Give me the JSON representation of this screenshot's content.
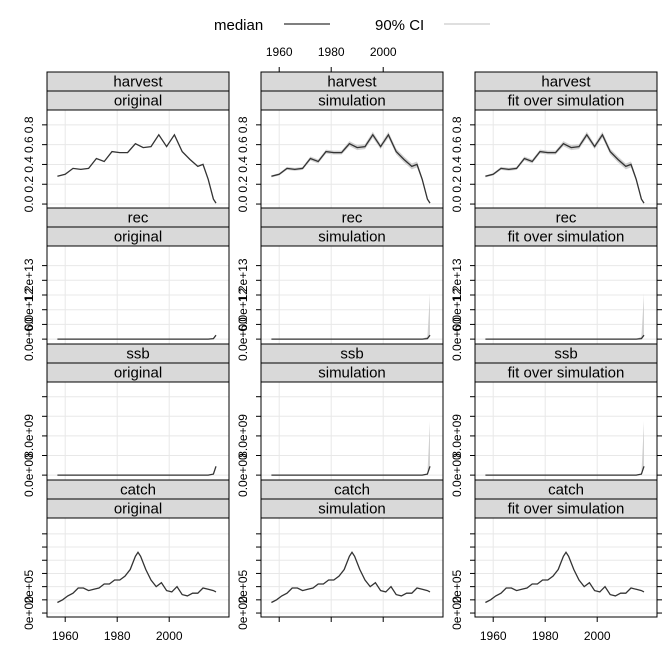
{
  "legend": {
    "items": [
      {
        "label": "median",
        "color": "#333333"
      },
      {
        "label": "90% CI",
        "color": "#cccccc"
      }
    ]
  },
  "chart_data": {
    "type": "line",
    "layout": "lattice 3 columns x 4 rows",
    "columns": [
      "original",
      "simulation",
      "fit over simulation"
    ],
    "x_ticks": [
      1960,
      1980,
      2000
    ],
    "xlim": [
      1953,
      2023
    ],
    "panels": [
      {
        "variable": "harvest",
        "ylim": [
          -0.05,
          0.95
        ],
        "y_ticks": [
          0.0,
          0.2,
          0.4,
          0.6,
          0.8
        ],
        "y_tick_labels": [
          "0.0",
          "0.2",
          "0.4",
          "0.6",
          "0.8"
        ],
        "x": [
          1957,
          1960,
          1963,
          1966,
          1969,
          1972,
          1975,
          1978,
          1981,
          1984,
          1987,
          1990,
          1993,
          1996,
          1999,
          2002,
          2005,
          2008,
          2011,
          2013,
          2015,
          2017,
          2018
        ],
        "median": [
          0.28,
          0.3,
          0.36,
          0.35,
          0.36,
          0.46,
          0.43,
          0.53,
          0.52,
          0.52,
          0.61,
          0.57,
          0.58,
          0.7,
          0.58,
          0.7,
          0.53,
          0.45,
          0.38,
          0.4,
          0.25,
          0.05,
          0.01
        ],
        "ci_halfwidth": [
          0.01,
          0.012,
          0.015,
          0.015,
          0.015,
          0.02,
          0.02,
          0.02,
          0.02,
          0.02,
          0.025,
          0.025,
          0.025,
          0.03,
          0.025,
          0.03,
          0.03,
          0.03,
          0.03,
          0.03,
          0.02,
          0.01,
          0.005
        ]
      },
      {
        "variable": "rec",
        "ylim": [
          -1200000000000.0,
          19000000000000.0
        ],
        "y_ticks": [
          0,
          3000000000000.0,
          6000000000000.0,
          9000000000000.0,
          12000000000000.0,
          15000000000000.0
        ],
        "y_tick_labels": [
          "0.0e+00",
          "",
          "6.0e+12",
          "",
          "1.2e+13",
          ""
        ],
        "x": [
          1957,
          1970,
          1990,
          2010,
          2015,
          2017,
          2018
        ],
        "median": [
          10000000000.0,
          10000000000.0,
          10000000000.0,
          10000000000.0,
          10000000000.0,
          100000000000.0,
          800000000000.0
        ],
        "ci_upper": [
          10000000000.0,
          10000000000.0,
          10000000000.0,
          10000000000.0,
          20000000000.0,
          500000000000.0,
          9300000000000.0
        ]
      },
      {
        "variable": "ssb",
        "ylim": [
          -1200000000.0,
          19000000000.0
        ],
        "y_ticks": [
          0,
          4000000000.0,
          8000000000.0,
          12000000000.0,
          16000000000.0
        ],
        "y_tick_labels": [
          "0.0e+00",
          "",
          "8.0e+09",
          "",
          ""
        ],
        "x": [
          1957,
          1970,
          1990,
          2010,
          2015,
          2017,
          2018
        ],
        "median": [
          10000000.0,
          10000000.0,
          10000000.0,
          10000000.0,
          10000000.0,
          200000000.0,
          1800000000.0
        ],
        "ci_upper": [
          10000000.0,
          10000000.0,
          10000000.0,
          10000000.0,
          20000000.0,
          300000000.0,
          11000000000.0
        ]
      },
      {
        "variable": "catch",
        "ylim": [
          -30000,
          720000
        ],
        "y_ticks": [
          0,
          100000,
          200000,
          300000,
          400000,
          500000,
          600000
        ],
        "y_tick_labels": [
          "0e+00",
          "",
          "2e+05",
          "",
          "",
          "",
          ""
        ],
        "x": [
          1957,
          1959,
          1961,
          1963,
          1965,
          1967,
          1969,
          1971,
          1973,
          1975,
          1977,
          1979,
          1981,
          1983,
          1985,
          1987,
          1988,
          1989,
          1991,
          1993,
          1995,
          1997,
          1999,
          2001,
          2003,
          2005,
          2007,
          2009,
          2011,
          2013,
          2015,
          2017,
          2018
        ],
        "median": [
          80000,
          100000,
          130000,
          150000,
          190000,
          190000,
          170000,
          180000,
          190000,
          220000,
          220000,
          250000,
          250000,
          280000,
          330000,
          430000,
          460000,
          430000,
          330000,
          250000,
          200000,
          230000,
          170000,
          160000,
          200000,
          140000,
          130000,
          150000,
          150000,
          190000,
          180000,
          170000,
          160000
        ]
      }
    ]
  }
}
